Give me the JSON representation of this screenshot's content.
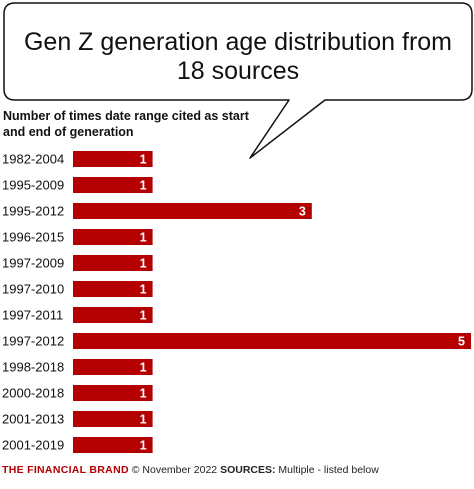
{
  "title": "Gen Z generation age distribution from 18 sources",
  "subtitle": "Number of times date range cited as start and end of generation",
  "footer": {
    "brand": "THE FINANCIAL BRAND",
    "copyright": "© November 2022",
    "sources_label": "SOURCES:",
    "sources_text": "Multiple  - listed below"
  },
  "colors": {
    "bar": "#b30000",
    "bar_label": "#ffffff",
    "text": "#111111"
  },
  "chart_data": {
    "type": "bar",
    "orientation": "horizontal",
    "categories": [
      "1982-2004",
      "1995-2009",
      "1995-2012",
      "1996-2015",
      "1997-2009",
      "1997-2010",
      "1997-2011",
      "1997-2012",
      "1998-2018",
      "2000-2018",
      "2001-2013",
      "2001-2019"
    ],
    "values": [
      1,
      1,
      3,
      1,
      1,
      1,
      1,
      5,
      1,
      1,
      1,
      1
    ],
    "xlim": [
      0,
      5
    ],
    "grid": false,
    "legend": "none"
  }
}
